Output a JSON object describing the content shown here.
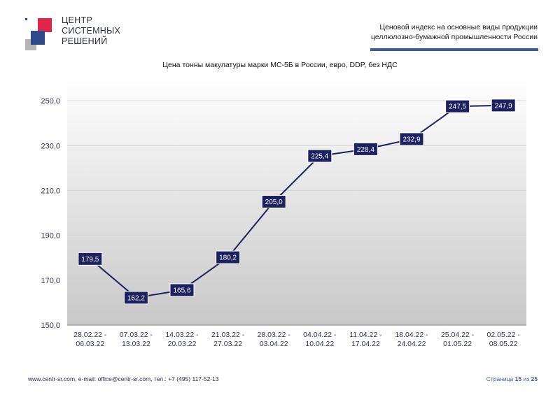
{
  "logo": {
    "lines": [
      "ЦЕНТР",
      "СИСТЕМНЫХ",
      "РЕШЕНИЙ"
    ],
    "colors": {
      "red": "#e0254a",
      "blue": "#2f4a8a",
      "grey": "#b5b5b5"
    }
  },
  "header": {
    "line1": "Ценовой индекс на основные виды продукции",
    "line2": "целлюлозно-бумажной промышленности России"
  },
  "chart_data": {
    "type": "line",
    "title": "Цена тонны макулатуры марки МС-5Б в России, евро, DDP, без НДС",
    "categories": [
      [
        "28.02.22 -",
        "06.03.22"
      ],
      [
        "07.03.22 -",
        "13.03.22"
      ],
      [
        "14.03.22 -",
        "20.03.22"
      ],
      [
        "21.03.22 -",
        "27.03.22"
      ],
      [
        "28.03.22 -",
        "03.04.22"
      ],
      [
        "04.04.22 -",
        "10.04.22"
      ],
      [
        "11.04.22 -",
        "17.04.22"
      ],
      [
        "18.04.22 -",
        "24.04.22"
      ],
      [
        "25.04.22 -",
        "01.05.22"
      ],
      [
        "02.05.22 -",
        "08.05.22"
      ]
    ],
    "values": [
      179.5,
      162.2,
      165.6,
      180.2,
      205.0,
      225.4,
      228.4,
      232.9,
      247.5,
      247.9
    ],
    "data_labels": [
      "179,5",
      "162,2",
      "165,6",
      "180,2",
      "205,0",
      "225,4",
      "228,4",
      "232,9",
      "247,5",
      "247,9"
    ],
    "yticks": [
      150,
      170,
      190,
      210,
      230,
      250
    ],
    "ytick_labels": [
      "150,0",
      "170,0",
      "190,0",
      "210,0",
      "230,0",
      "250,0"
    ],
    "ylim": [
      150,
      260
    ],
    "grid": true,
    "line_color": "#1e2160",
    "label_bg": "#1e2160"
  },
  "footer": {
    "contacts": "www.centr-sr.com, e-mail: office@centr-sr.com, тел.: +7 (495) 117-52-13",
    "page_word": "Страница",
    "page_num": "15",
    "of_word": "из",
    "page_total": "25"
  }
}
